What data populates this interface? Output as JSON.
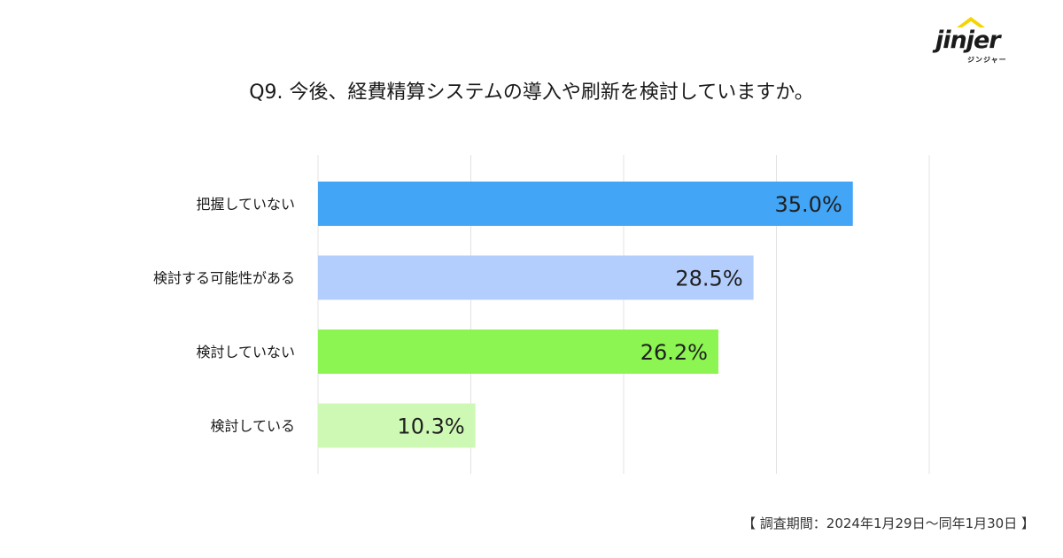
{
  "brand": {
    "logo_text": "jinjer",
    "logo_sub": "ジンジャー",
    "mark_color": "#f5d400"
  },
  "title": "Q9. 今後、経費精算システムの導入や刷新を検討していますか。",
  "footer": "【 調査期間：2024年1月29日〜同年1月30日 】",
  "chart_data": {
    "type": "bar",
    "orientation": "horizontal",
    "categories": [
      "把握していない",
      "検討する可能性がある",
      "検討していない",
      "検討している"
    ],
    "values": [
      35.0,
      28.5,
      26.2,
      10.3
    ],
    "value_labels": [
      "35.0%",
      "28.5%",
      "26.2%",
      "10.3%"
    ],
    "colors": [
      "#42a5f5",
      "#b3cdfd",
      "#8cf552",
      "#cef9b4"
    ],
    "xlim": [
      0,
      40
    ],
    "grid": true,
    "grid_step": 10
  }
}
